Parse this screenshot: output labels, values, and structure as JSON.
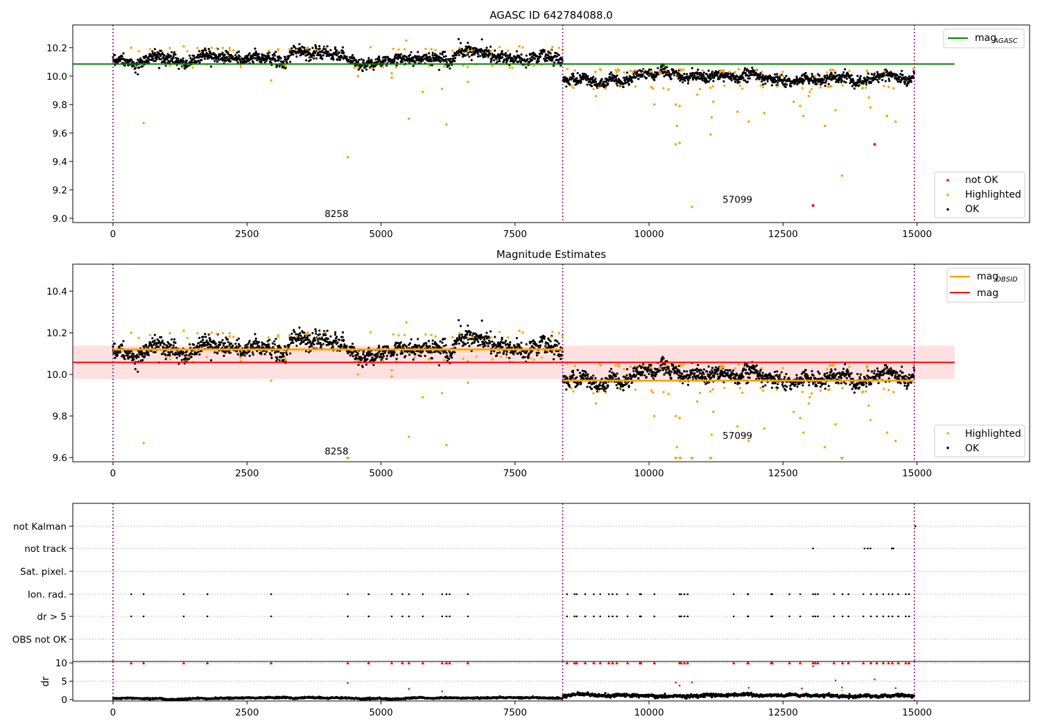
{
  "colors": {
    "ok": "#000000",
    "highlighted": "#ffa500",
    "not_ok": "#ff0000",
    "agasc_line": "#008000",
    "obsid_line": "#ffa500",
    "mag_line": "#ff0000",
    "mag_band": "#ffdddd",
    "obs_boundary": "#800080"
  },
  "chart_data": [
    {
      "type": "scatter",
      "title": "AGASC ID 642784088.0",
      "xlabel": "",
      "ylabel": "",
      "xlim": [
        -750,
        17100
      ],
      "ylim": [
        8.97,
        10.36
      ],
      "xticks": [
        0,
        2500,
        5000,
        7500,
        10000,
        12500,
        15000
      ],
      "yticks": [
        9.0,
        9.2,
        9.4,
        9.6,
        9.8,
        10.0,
        10.2
      ],
      "ytick_labels": [
        "9.0",
        "9.2",
        "9.4",
        "9.6",
        "9.8",
        "10.0",
        "10.2"
      ],
      "obs_boundaries": [
        0,
        8390,
        14950
      ],
      "obs_labels": [
        {
          "text": "8258",
          "x": 4170,
          "y": 9.01
        },
        {
          "text": "57099",
          "x": 11650,
          "y": 9.11
        }
      ],
      "lines": [
        {
          "name": "mag",
          "name_sub": "AGASC",
          "y": 10.085,
          "x0": -750,
          "x1": 15700,
          "color": "#008000"
        }
      ],
      "ok_segments": [
        {
          "x0": 0,
          "x1": 8390,
          "mean": 10.13,
          "spread": 0.025
        },
        {
          "x0": 8390,
          "x1": 14950,
          "mean": 9.98,
          "spread": 0.022
        }
      ],
      "highlighted_points": [
        [
          570,
          9.67
        ],
        [
          2950,
          9.97
        ],
        [
          4380,
          9.43
        ],
        [
          4570,
          10.0
        ],
        [
          5200,
          9.99
        ],
        [
          5200,
          10.02
        ],
        [
          5470,
          10.25
        ],
        [
          5520,
          9.7
        ],
        [
          5780,
          9.89
        ],
        [
          6140,
          9.91
        ],
        [
          6220,
          9.66
        ],
        [
          6620,
          9.96
        ],
        [
          7580,
          10.21
        ],
        [
          1320,
          10.21
        ],
        [
          340,
          10.2
        ],
        [
          9010,
          9.86
        ],
        [
          10100,
          9.8
        ],
        [
          10500,
          9.8
        ],
        [
          10520,
          9.65
        ],
        [
          10500,
          9.52
        ],
        [
          10570,
          9.53
        ],
        [
          10570,
          9.79
        ],
        [
          10800,
          9.08
        ],
        [
          10900,
          9.87
        ],
        [
          11150,
          9.59
        ],
        [
          11170,
          9.71
        ],
        [
          11200,
          9.82
        ],
        [
          11650,
          9.75
        ],
        [
          11860,
          9.68
        ],
        [
          12150,
          9.74
        ],
        [
          12700,
          9.82
        ],
        [
          12820,
          9.79
        ],
        [
          12880,
          9.72
        ],
        [
          12980,
          9.86
        ],
        [
          13000,
          9.89
        ],
        [
          13280,
          9.65
        ],
        [
          13480,
          9.76
        ],
        [
          13600,
          9.3
        ],
        [
          14100,
          9.85
        ],
        [
          14130,
          9.78
        ],
        [
          14440,
          9.72
        ],
        [
          14600,
          9.68
        ],
        [
          9000,
          10.03
        ],
        [
          9400,
          10.03
        ],
        [
          9700,
          10.03
        ],
        [
          10200,
          10.02
        ],
        [
          10500,
          10.01
        ],
        [
          11000,
          10.04
        ],
        [
          11500,
          10.03
        ],
        [
          12000,
          10.04
        ],
        [
          12500,
          10.0
        ],
        [
          13100,
          10.0
        ],
        [
          13400,
          9.93
        ]
      ],
      "not_ok_points": [
        [
          13060,
          9.09
        ],
        [
          14210,
          9.52
        ]
      ],
      "legend": {
        "lines": [
          {
            "label": "mag",
            "sub": "AGASC"
          }
        ],
        "points": [
          {
            "label": "not OK"
          },
          {
            "label": "Highlighted"
          },
          {
            "label": "OK"
          }
        ]
      }
    },
    {
      "type": "scatter",
      "title": "Magnitude Estimates",
      "xlabel": "",
      "ylabel": "",
      "xlim": [
        -750,
        17100
      ],
      "ylim": [
        9.58,
        10.53
      ],
      "xticks": [
        0,
        2500,
        5000,
        7500,
        10000,
        12500,
        15000
      ],
      "yticks": [
        9.6,
        9.8,
        10.0,
        10.2,
        10.4
      ],
      "ytick_labels": [
        "9.6",
        "9.8",
        "10.0",
        "10.2",
        "10.4"
      ],
      "obs_boundaries": [
        0,
        8390,
        14950
      ],
      "obs_labels": [
        {
          "text": "8258",
          "x": 4170,
          "y": 9.615
        },
        {
          "text": "57099",
          "x": 11650,
          "y": 9.69
        }
      ],
      "mag": {
        "name": "mag",
        "value": 10.058,
        "band_low": 9.978,
        "band_high": 10.138,
        "x0": -750,
        "x1": 15700
      },
      "obsid_segments": [
        {
          "name": "mag",
          "name_sub": "OBSID",
          "x0": 0,
          "x1": 8390,
          "y": 10.12
        },
        {
          "name": "mag",
          "name_sub": "OBSID",
          "x0": 8390,
          "x1": 14950,
          "y": 9.97
        }
      ],
      "ok_segments": [
        {
          "x0": 0,
          "x1": 8390,
          "mean": 10.13,
          "spread": 0.025
        },
        {
          "x0": 8390,
          "x1": 14950,
          "mean": 9.98,
          "spread": 0.022
        }
      ],
      "highlighted_points": [
        [
          570,
          9.67
        ],
        [
          2950,
          9.97
        ],
        [
          4570,
          10.0
        ],
        [
          5200,
          9.99
        ],
        [
          5200,
          10.02
        ],
        [
          5470,
          10.25
        ],
        [
          5520,
          9.7
        ],
        [
          5780,
          9.89
        ],
        [
          6140,
          9.91
        ],
        [
          6220,
          9.66
        ],
        [
          6620,
          9.96
        ],
        [
          7580,
          10.21
        ],
        [
          1320,
          10.21
        ],
        [
          340,
          10.2
        ],
        [
          9010,
          9.86
        ],
        [
          10100,
          9.8
        ],
        [
          10500,
          9.8
        ],
        [
          10520,
          9.65
        ],
        [
          10570,
          9.79
        ],
        [
          10900,
          9.87
        ],
        [
          11170,
          9.71
        ],
        [
          11200,
          9.82
        ],
        [
          11650,
          9.75
        ],
        [
          11860,
          9.68
        ],
        [
          12150,
          9.74
        ],
        [
          12700,
          9.82
        ],
        [
          12820,
          9.79
        ],
        [
          12880,
          9.72
        ],
        [
          12980,
          9.86
        ],
        [
          13000,
          9.89
        ],
        [
          13280,
          9.65
        ],
        [
          13480,
          9.76
        ],
        [
          14100,
          9.85
        ],
        [
          14130,
          9.78
        ],
        [
          14440,
          9.72
        ],
        [
          14600,
          9.68
        ]
      ],
      "clipped_points_x": [
        4380,
        10500,
        10580,
        10800,
        11150,
        13600
      ],
      "legend": {
        "lines": [
          {
            "label": "mag",
            "sub": "OBSID"
          },
          {
            "label": "mag"
          }
        ],
        "points": [
          {
            "label": "Highlighted"
          },
          {
            "label": "OK"
          }
        ]
      }
    },
    {
      "type": "scatter",
      "title": "",
      "xlabel": "",
      "ylabel": "",
      "xlim": [
        -750,
        17100
      ],
      "yticks": [
        "not Kalman",
        "not track",
        "Sat. pixel.",
        "Ion. rad.",
        "dr > 5",
        "OBS not OK"
      ],
      "obs_boundaries": [
        0,
        8390,
        14950
      ],
      "flag_rows": {
        "not Kalman": [
          14970
        ],
        "not track": [
          13060,
          14020,
          14080,
          14130,
          14530,
          14560
        ],
        "Sat. pixel.": [],
        "Ion. rad.": [
          340,
          570,
          1320,
          1760,
          2950,
          4380,
          4770,
          5200,
          5400,
          5520,
          5780,
          6140,
          6220,
          6280,
          6620,
          8470,
          8610,
          8650,
          8810,
          8970,
          9090,
          9250,
          9320,
          9400,
          9600,
          9830,
          9850,
          10100,
          10570,
          10600,
          10660,
          10720,
          11580,
          11840,
          11850,
          12280,
          12300,
          12620,
          12820,
          13060,
          13100,
          13150,
          13450,
          13610,
          13720,
          14000,
          14140,
          14250,
          14370,
          14470,
          14540,
          14650,
          14790,
          14850
        ],
        "dr > 5": [
          340,
          570,
          1320,
          1760,
          2950,
          4380,
          4770,
          5200,
          5400,
          5520,
          5780,
          6140,
          6220,
          6280,
          6620,
          8470,
          8610,
          8650,
          8810,
          8970,
          9090,
          9250,
          9320,
          9400,
          9600,
          9830,
          9850,
          10100,
          10570,
          10600,
          10660,
          10720,
          11580,
          11840,
          11850,
          12280,
          12300,
          12620,
          12820,
          13060,
          13100,
          13150,
          13450,
          13610,
          13720,
          14000,
          14140,
          14250,
          14370,
          14470,
          14540,
          14650,
          14790,
          14850
        ],
        "OBS not OK": []
      }
    },
    {
      "type": "scatter",
      "title": "",
      "xlabel": "",
      "ylabel": "dr",
      "xlim": [
        -750,
        17100
      ],
      "ylim": [
        -0.4,
        10.4
      ],
      "xticks": [
        0,
        2500,
        5000,
        7500,
        10000,
        12500,
        15000
      ],
      "yticks": [
        0,
        5,
        10
      ],
      "ytick_labels": [
        "0",
        "5",
        "10"
      ],
      "obs_boundaries": [
        0,
        8390,
        14950
      ],
      "ok_segments": [
        {
          "x0": 0,
          "x1": 8390,
          "mean": 0.35,
          "spread": 0.12
        },
        {
          "x0": 8390,
          "x1": 14950,
          "mean": 0.95,
          "spread": 0.25
        }
      ],
      "clipped_points_x": [
        340,
        570,
        1320,
        1760,
        2950,
        4380,
        4770,
        5200,
        5400,
        5520,
        5780,
        6140,
        6220,
        6280,
        6620,
        8470,
        8610,
        8650,
        8810,
        8970,
        9090,
        9250,
        9320,
        9400,
        9600,
        9830,
        9850,
        10100,
        10570,
        10600,
        10660,
        10720,
        11580,
        11840,
        11850,
        12280,
        12300,
        12620,
        12820,
        13060,
        13100,
        13150,
        13450,
        13610,
        13720,
        14000,
        14140,
        14250,
        14370,
        14470,
        14540,
        14650,
        14790,
        14850
      ],
      "not_ok_points": [
        [
          4380,
          4.5
        ],
        [
          5520,
          2.9
        ],
        [
          6140,
          2.2
        ],
        [
          10500,
          4.6
        ],
        [
          10570,
          3.8
        ],
        [
          10800,
          4.7
        ],
        [
          11860,
          3.2
        ],
        [
          12850,
          3.0
        ],
        [
          13060,
          9.1
        ],
        [
          13480,
          5.2
        ],
        [
          13600,
          3.3
        ],
        [
          14210,
          5.5
        ],
        [
          14600,
          3.1
        ]
      ],
      "highlighted_points": [
        [
          13600,
          2.5
        ]
      ]
    }
  ]
}
